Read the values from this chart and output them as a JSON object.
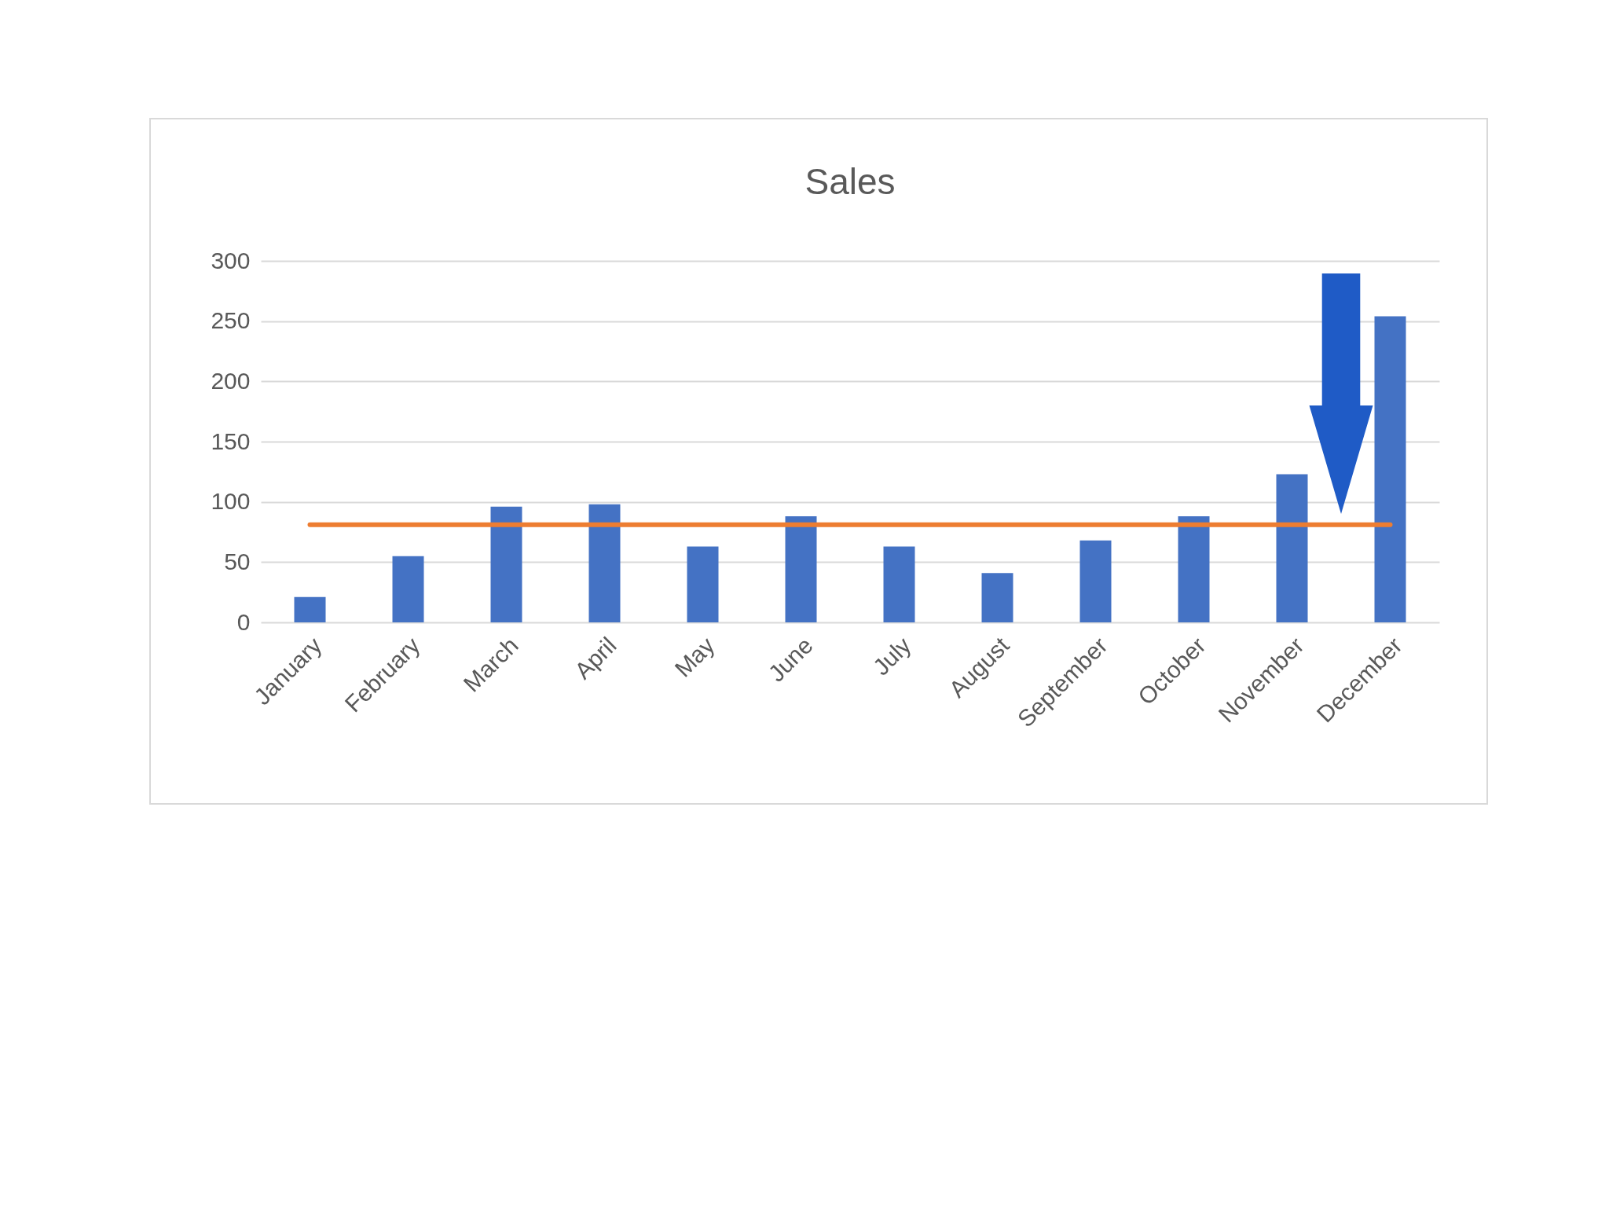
{
  "chart_data": {
    "type": "bar",
    "title": "Sales",
    "categories": [
      "January",
      "February",
      "March",
      "April",
      "May",
      "June",
      "July",
      "August",
      "September",
      "October",
      "November",
      "December"
    ],
    "series": [
      {
        "color": "#4472c4",
        "values": [
          21,
          55,
          96,
          98,
          63,
          88,
          63,
          41,
          68,
          88,
          123,
          254
        ]
      },
      {
        "type": "line",
        "color": "#ed7d31",
        "values": [
          81,
          81,
          81,
          81,
          81,
          81,
          81,
          81,
          81,
          81,
          81,
          81
        ]
      }
    ],
    "ylim": [
      0,
      300
    ],
    "yticks": [
      0,
      50,
      100,
      150,
      200,
      250,
      300
    ],
    "grid": "y",
    "marker": "none"
  }
}
